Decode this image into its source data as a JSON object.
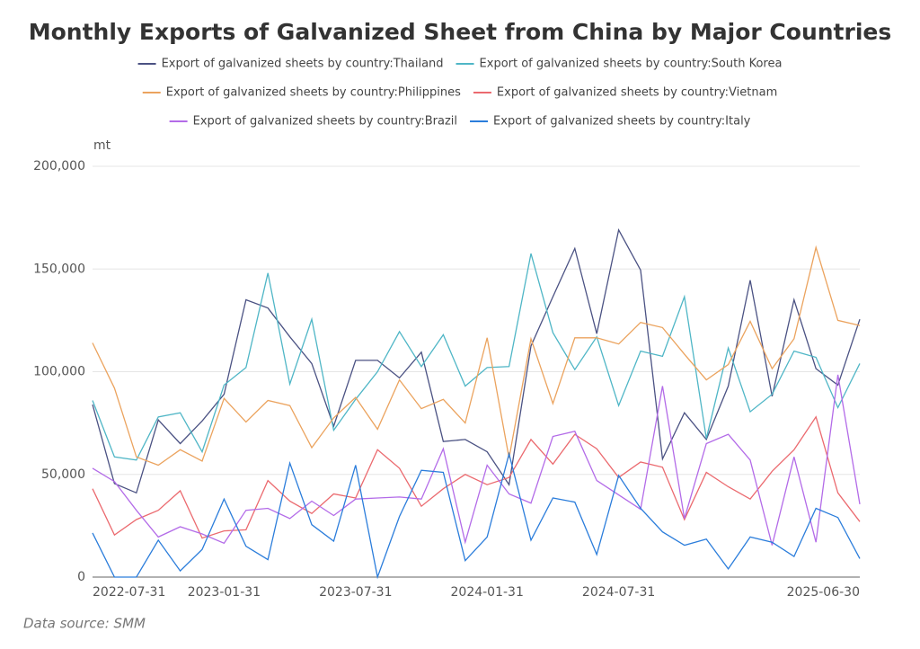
{
  "chart_data": {
    "type": "line",
    "title": "Monthly Exports of Galvanized Sheet from China by Major Countries",
    "y_unit": "mt",
    "source": "Data source:  SMM",
    "categories": [
      "2022-07-31",
      null,
      null,
      null,
      null,
      null,
      "2023-01-31",
      null,
      null,
      null,
      null,
      null,
      "2023-07-31",
      null,
      null,
      null,
      null,
      null,
      "2024-01-31",
      null,
      null,
      null,
      null,
      null,
      "2024-07-31",
      null,
      null,
      null,
      null,
      null,
      null,
      null,
      null,
      null,
      null,
      "2025-06-30"
    ],
    "ylim": [
      0,
      200000
    ],
    "yticks": [
      0,
      {
        "value": 50000,
        "label": "50,000"
      },
      {
        "value": 100000,
        "label": "100,000"
      },
      {
        "value": 150000,
        "label": "150,000"
      },
      {
        "value": 200000,
        "label": "200,000"
      }
    ],
    "grid": true,
    "legend": "top",
    "series": [
      {
        "name": "Export of galvanized sheets by country:Thailand",
        "color": "#4b5283",
        "values": [
          84000,
          45500,
          41000,
          76500,
          65000,
          76000,
          89000,
          135000,
          131000,
          117000,
          104000,
          73500,
          105500,
          105500,
          97000,
          109500,
          66000,
          67000,
          61000,
          45000,
          112500,
          136500,
          160000,
          118500,
          169000,
          149500,
          57500,
          80000,
          67000,
          93000,
          144500,
          88000,
          135000,
          101500,
          93500,
          125500
        ]
      },
      {
        "name": "Export of galvanized sheets by country:South Korea",
        "color": "#4fb6c6",
        "values": [
          86000,
          58500,
          57000,
          78000,
          80000,
          61000,
          93500,
          102000,
          148000,
          94000,
          125500,
          71500,
          86500,
          100000,
          119500,
          102500,
          118000,
          93000,
          102000,
          102500,
          157500,
          119000,
          101000,
          117000,
          83500,
          110000,
          107500,
          136500,
          67500,
          111500,
          80500,
          89000,
          110000,
          107000,
          82500,
          104000
        ]
      },
      {
        "name": "Export of galvanized sheets by country:Philippines",
        "color": "#eba35e",
        "values": [
          114000,
          92000,
          58500,
          54500,
          62000,
          56500,
          87000,
          75500,
          86000,
          83500,
          63000,
          77500,
          87500,
          72000,
          96000,
          82000,
          86500,
          75000,
          116500,
          58000,
          116000,
          84500,
          116500,
          116500,
          113500,
          124000,
          121500,
          108500,
          96000,
          103500,
          124500,
          101500,
          116000,
          160500,
          125000,
          122500
        ]
      },
      {
        "name": "Export of galvanized sheets by country:Vietnam",
        "color": "#eb6a6f",
        "values": [
          43000,
          20500,
          28000,
          32500,
          42000,
          19000,
          22500,
          23000,
          47000,
          37000,
          31000,
          40500,
          38500,
          62000,
          53000,
          34500,
          43000,
          50000,
          45000,
          48500,
          67000,
          55000,
          69500,
          62500,
          48500,
          56000,
          53500,
          28000,
          51000,
          44000,
          38000,
          51500,
          62000,
          78000,
          41000,
          27000
        ]
      },
      {
        "name": "Export of galvanized sheets by country:Brazil",
        "color": "#b36be8",
        "values": [
          53000,
          46500,
          32500,
          19500,
          24500,
          21000,
          16500,
          32500,
          33500,
          28500,
          37000,
          30000,
          38000,
          38500,
          39000,
          38000,
          62500,
          17000,
          54500,
          40500,
          36000,
          68500,
          71000,
          47000,
          40000,
          33000,
          93000,
          28500,
          65000,
          69500,
          57000,
          15500,
          58500,
          17000,
          98500,
          35500
        ]
      },
      {
        "name": "Export of galvanized sheets by country:Italy",
        "color": "#2b7ddb",
        "values": [
          21500,
          0,
          0,
          18000,
          3000,
          13500,
          38000,
          15000,
          8500,
          55500,
          25500,
          17500,
          54500,
          0,
          29500,
          52000,
          51000,
          8000,
          19500,
          60000,
          18000,
          38500,
          36500,
          11000,
          49500,
          33500,
          22000,
          15500,
          18500,
          4000,
          19500,
          17000,
          10000,
          33500,
          29000,
          9000
        ]
      }
    ]
  }
}
